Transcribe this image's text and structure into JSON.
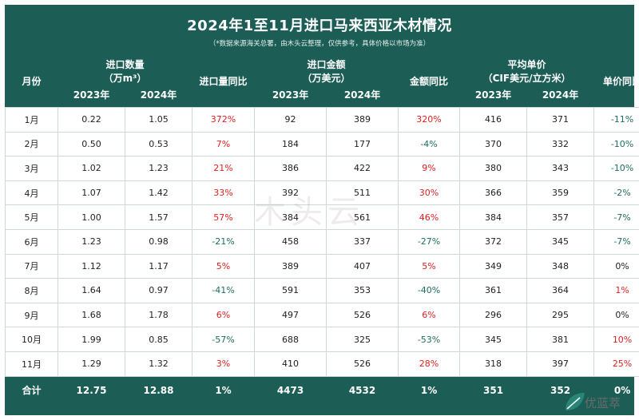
{
  "title": "2024年1至11月进口马来西亚木材情况",
  "subtitle": "（*数据来源海关总署，由木头云整理，仅供参考，具体价格以市场为准）",
  "headers": {
    "month": "月份",
    "volume_group": "进口数量",
    "volume_unit": "（万m³）",
    "volume_yoy": "进口量同比",
    "amount_group": "进口金额",
    "amount_unit": "（万美元）",
    "amount_yoy": "金额同比",
    "price_group": "平均单价",
    "price_unit": "（CIF美元/立方米）",
    "price_yoy": "单价同比",
    "y2023": "2023年",
    "y2024": "2024年"
  },
  "rows": [
    {
      "month": "1月",
      "v2023": "0.22",
      "v2024": "1.05",
      "vy": "372%",
      "a2023": "92",
      "a2024": "389",
      "ay": "320%",
      "p2023": "416",
      "p2024": "371",
      "py": "-11%"
    },
    {
      "month": "2月",
      "v2023": "0.50",
      "v2024": "0.53",
      "vy": "7%",
      "a2023": "184",
      "a2024": "177",
      "ay": "-4%",
      "p2023": "370",
      "p2024": "332",
      "py": "-10%"
    },
    {
      "month": "3月",
      "v2023": "1.02",
      "v2024": "1.23",
      "vy": "21%",
      "a2023": "386",
      "a2024": "422",
      "ay": "9%",
      "p2023": "380",
      "p2024": "343",
      "py": "-10%"
    },
    {
      "month": "4月",
      "v2023": "1.07",
      "v2024": "1.42",
      "vy": "33%",
      "a2023": "392",
      "a2024": "511",
      "ay": "30%",
      "p2023": "366",
      "p2024": "359",
      "py": "-2%"
    },
    {
      "month": "5月",
      "v2023": "1.00",
      "v2024": "1.57",
      "vy": "57%",
      "a2023": "384",
      "a2024": "561",
      "ay": "46%",
      "p2023": "384",
      "p2024": "357",
      "py": "-7%"
    },
    {
      "month": "6月",
      "v2023": "1.23",
      "v2024": "0.98",
      "vy": "-21%",
      "a2023": "458",
      "a2024": "337",
      "ay": "-27%",
      "p2023": "372",
      "p2024": "345",
      "py": "-7%"
    },
    {
      "month": "7月",
      "v2023": "1.12",
      "v2024": "1.17",
      "vy": "5%",
      "a2023": "389",
      "a2024": "407",
      "ay": "5%",
      "p2023": "349",
      "p2024": "348",
      "py": "0%"
    },
    {
      "month": "8月",
      "v2023": "1.64",
      "v2024": "0.97",
      "vy": "-41%",
      "a2023": "591",
      "a2024": "353",
      "ay": "-40%",
      "p2023": "361",
      "p2024": "364",
      "py": "1%"
    },
    {
      "month": "9月",
      "v2023": "1.68",
      "v2024": "1.78",
      "vy": "6%",
      "a2023": "497",
      "a2024": "526",
      "ay": "6%",
      "p2023": "296",
      "p2024": "295",
      "py": "0%"
    },
    {
      "month": "10月",
      "v2023": "1.99",
      "v2024": "0.85",
      "vy": "-57%",
      "a2023": "688",
      "a2024": "325",
      "ay": "-53%",
      "p2023": "345",
      "p2024": "381",
      "py": "10%"
    },
    {
      "month": "11月",
      "v2023": "1.29",
      "v2024": "1.32",
      "vy": "3%",
      "a2023": "410",
      "a2024": "526",
      "ay": "28%",
      "p2023": "318",
      "p2024": "397",
      "py": "25%"
    }
  ],
  "total": {
    "label": "合计",
    "v2023": "12.75",
    "v2024": "12.88",
    "vy": "1%",
    "a2023": "4473",
    "a2024": "4532",
    "ay": "1%",
    "p2023": "351",
    "p2024": "352",
    "py": "0%"
  },
  "watermark": "木头云",
  "logo_text": "优蓝萃",
  "colors": {
    "header_bg": "#1c5e56",
    "up": "#e02020",
    "down": "#1e6e5e"
  }
}
